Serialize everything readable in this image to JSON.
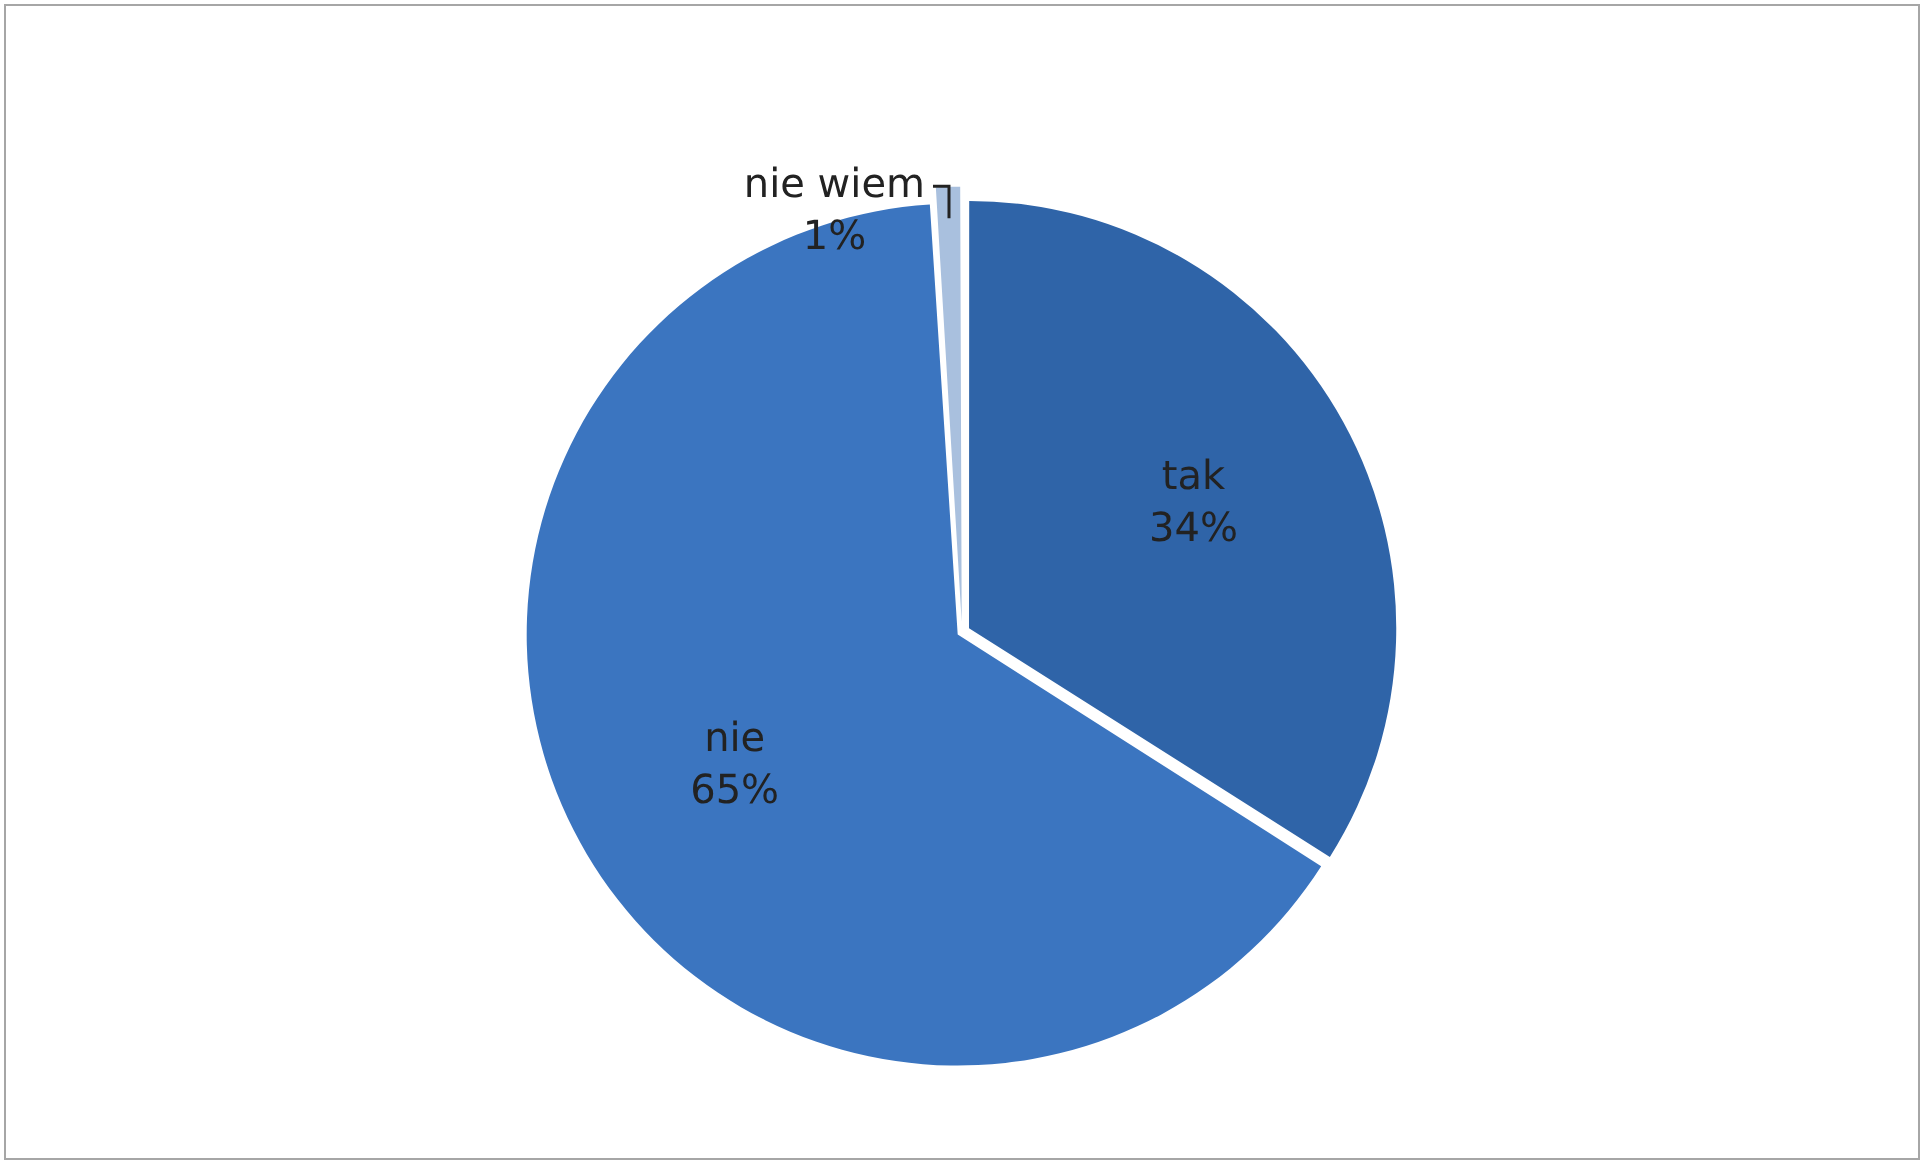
{
  "chart_data": {
    "type": "pie",
    "categories": [
      "tak",
      "nie",
      "nie wiem"
    ],
    "values": [
      34,
      65,
      1
    ],
    "colors": [
      "#2f64a8",
      "#3b75c0",
      "#a9c0de"
    ],
    "value_labels": [
      "34%",
      "65%",
      "1%"
    ],
    "legend": false
  }
}
